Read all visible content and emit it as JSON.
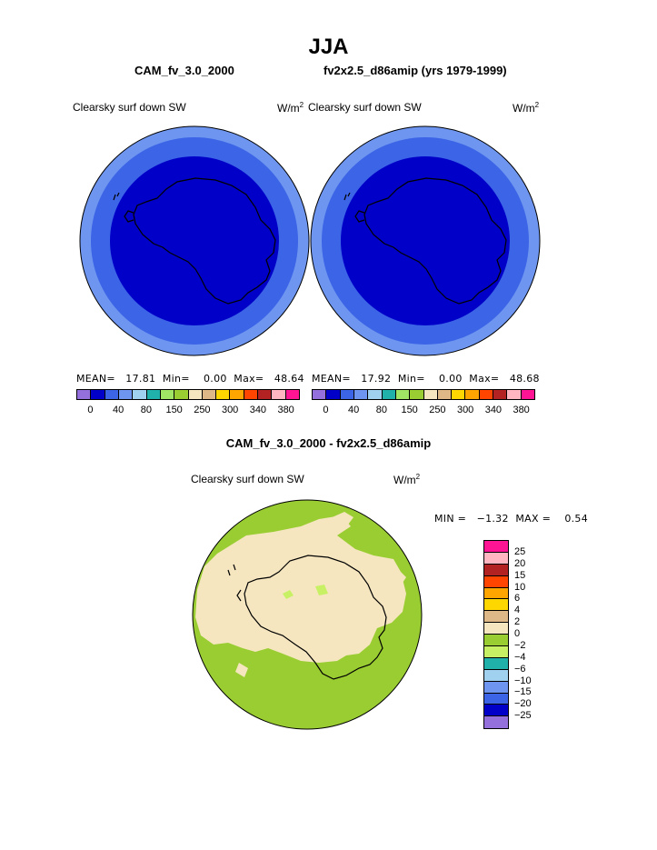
{
  "figure": {
    "title": "JJA",
    "difference_title": "CAM_fv_3.0_2000 - fv2x2.5_d86amip"
  },
  "left_panel": {
    "case": "CAM_fv_3.0_2000",
    "variable": "Clearsky surf down SW",
    "unit": "W/m",
    "unit_exp": "2",
    "stats": "MEAN=   17.81  Min=    0.00  Max=   48.64"
  },
  "right_panel": {
    "case": "fv2x2.5_d86amip (yrs 1979-1999)",
    "variable": "Clearsky surf down SW",
    "unit": "W/m",
    "unit_exp": "2",
    "stats": "MEAN=   17.92  Min=    0.00  Max=   48.68"
  },
  "diff_panel": {
    "variable": "Clearsky surf down SW",
    "unit": "W/m",
    "unit_exp": "2",
    "minmax": "MIN =   −1.32  MAX =    0.54"
  },
  "colorbar_main": {
    "colors": [
      "#9370db",
      "#0000c8",
      "#3c64e6",
      "#6e96f0",
      "#a0d2f0",
      "#20b2aa",
      "#a0e664",
      "#9acd32",
      "#f5e6c0",
      "#deb887",
      "#ffd700",
      "#ffa500",
      "#ff4500",
      "#b22222",
      "#ffb6c1",
      "#ff1493"
    ],
    "tick_labels": [
      "0",
      "40",
      "80",
      "150",
      "250",
      "300",
      "340",
      "380"
    ]
  },
  "colorbar_diff": {
    "colors": [
      "#ff1493",
      "#ffb6c1",
      "#b22222",
      "#ff4500",
      "#ffa500",
      "#ffd700",
      "#deb887",
      "#f5e6c0",
      "#9acd32",
      "#c8f064",
      "#20b2aa",
      "#a0d2f0",
      "#6e96f0",
      "#3c64e6",
      "#0000c8",
      "#9370db"
    ],
    "tick_labels": [
      "25",
      "20",
      "15",
      "10",
      "6",
      "4",
      "2",
      "0",
      "−2",
      "−4",
      "−6",
      "−10",
      "−15",
      "−20",
      "−25"
    ]
  },
  "chart_data": [
    {
      "type": "map",
      "projection": "south-polar-stereographic",
      "title": "Clearsky surf down SW",
      "units": "W/m2",
      "stats": {
        "mean": 17.81,
        "min": 0.0,
        "max": 48.64
      },
      "bands": [
        {
          "region": "inner (south of ~50S incl. Antarctica)",
          "color": "#0000c8",
          "range": "0-40"
        },
        {
          "region": "middle ring",
          "color": "#3c64e6",
          "range": "40-80"
        },
        {
          "region": "outer ring",
          "color": "#6e96f0",
          "range": "80-150"
        }
      ]
    },
    {
      "type": "map",
      "projection": "south-polar-stereographic",
      "title": "Clearsky surf down SW",
      "units": "W/m2",
      "stats": {
        "mean": 17.92,
        "min": 0.0,
        "max": 48.68
      },
      "bands": [
        {
          "region": "inner (south of ~50S incl. Antarctica)",
          "color": "#0000c8",
          "range": "0-40"
        },
        {
          "region": "middle ring",
          "color": "#3c64e6",
          "range": "40-80"
        },
        {
          "region": "outer ring",
          "color": "#6e96f0",
          "range": "80-150"
        }
      ]
    },
    {
      "type": "map",
      "projection": "south-polar-stereographic",
      "title": "Clearsky surf down SW",
      "units": "W/m2",
      "stats": {
        "min": -1.32,
        "max": 0.54
      },
      "bands": [
        {
          "region": "most of domain",
          "color": "#9acd32",
          "range": "-2 to 0"
        },
        {
          "region": "Antarctica and surrounding patches",
          "color": "#f5e6c0",
          "range": "0 to 2"
        },
        {
          "region": "small patches near Antarctic coast",
          "color": "#c8f064",
          "range": "-4 to -2"
        }
      ]
    }
  ]
}
